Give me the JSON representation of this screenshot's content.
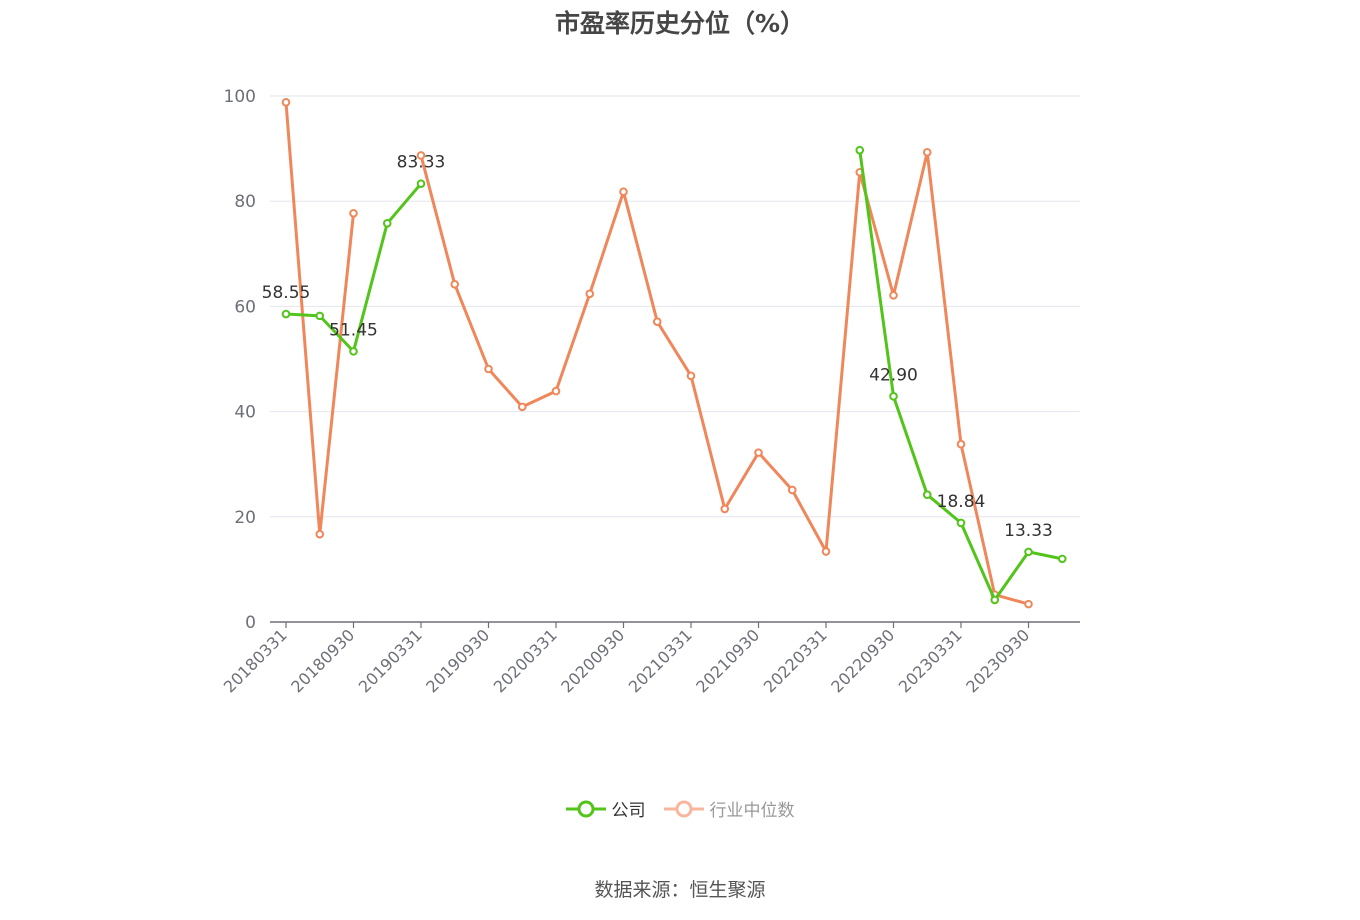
{
  "chart_data": {
    "type": "line",
    "title": "市盈率历史分位（%）",
    "ylim": [
      0,
      100
    ],
    "y_ticks": [
      0,
      20,
      40,
      60,
      80,
      100
    ],
    "x_tick_labels": [
      "20180331",
      "20180930",
      "20190331",
      "20190930",
      "20200331",
      "20200930",
      "20210331",
      "20210930",
      "20220331",
      "20220930",
      "20230331",
      "20230930"
    ],
    "grid": true,
    "legend_position": "bottom",
    "series": [
      {
        "name": "公司",
        "color": "#52c41a",
        "values": [
          58.55,
          58.2,
          51.45,
          75.8,
          83.33,
          null,
          null,
          null,
          null,
          null,
          null,
          null,
          null,
          null,
          null,
          null,
          null,
          89.7,
          42.9,
          24.2,
          18.84,
          4.2,
          13.33,
          12.0
        ],
        "data_labels": {
          "0": "58.55",
          "2": "51.45",
          "4": "83.33",
          "18": "42.90",
          "20": "18.84",
          "22": "13.33"
        }
      },
      {
        "name": "行业中位数",
        "color": "#f0875a",
        "values": [
          98.8,
          16.7,
          77.7,
          null,
          88.7,
          64.2,
          48.1,
          40.9,
          43.9,
          62.4,
          81.8,
          57.1,
          46.8,
          21.5,
          32.2,
          25.1,
          13.4,
          85.5,
          62.1,
          89.3,
          33.8,
          5.2,
          3.4,
          null
        ]
      }
    ]
  },
  "source": "数据来源：恒生聚源"
}
